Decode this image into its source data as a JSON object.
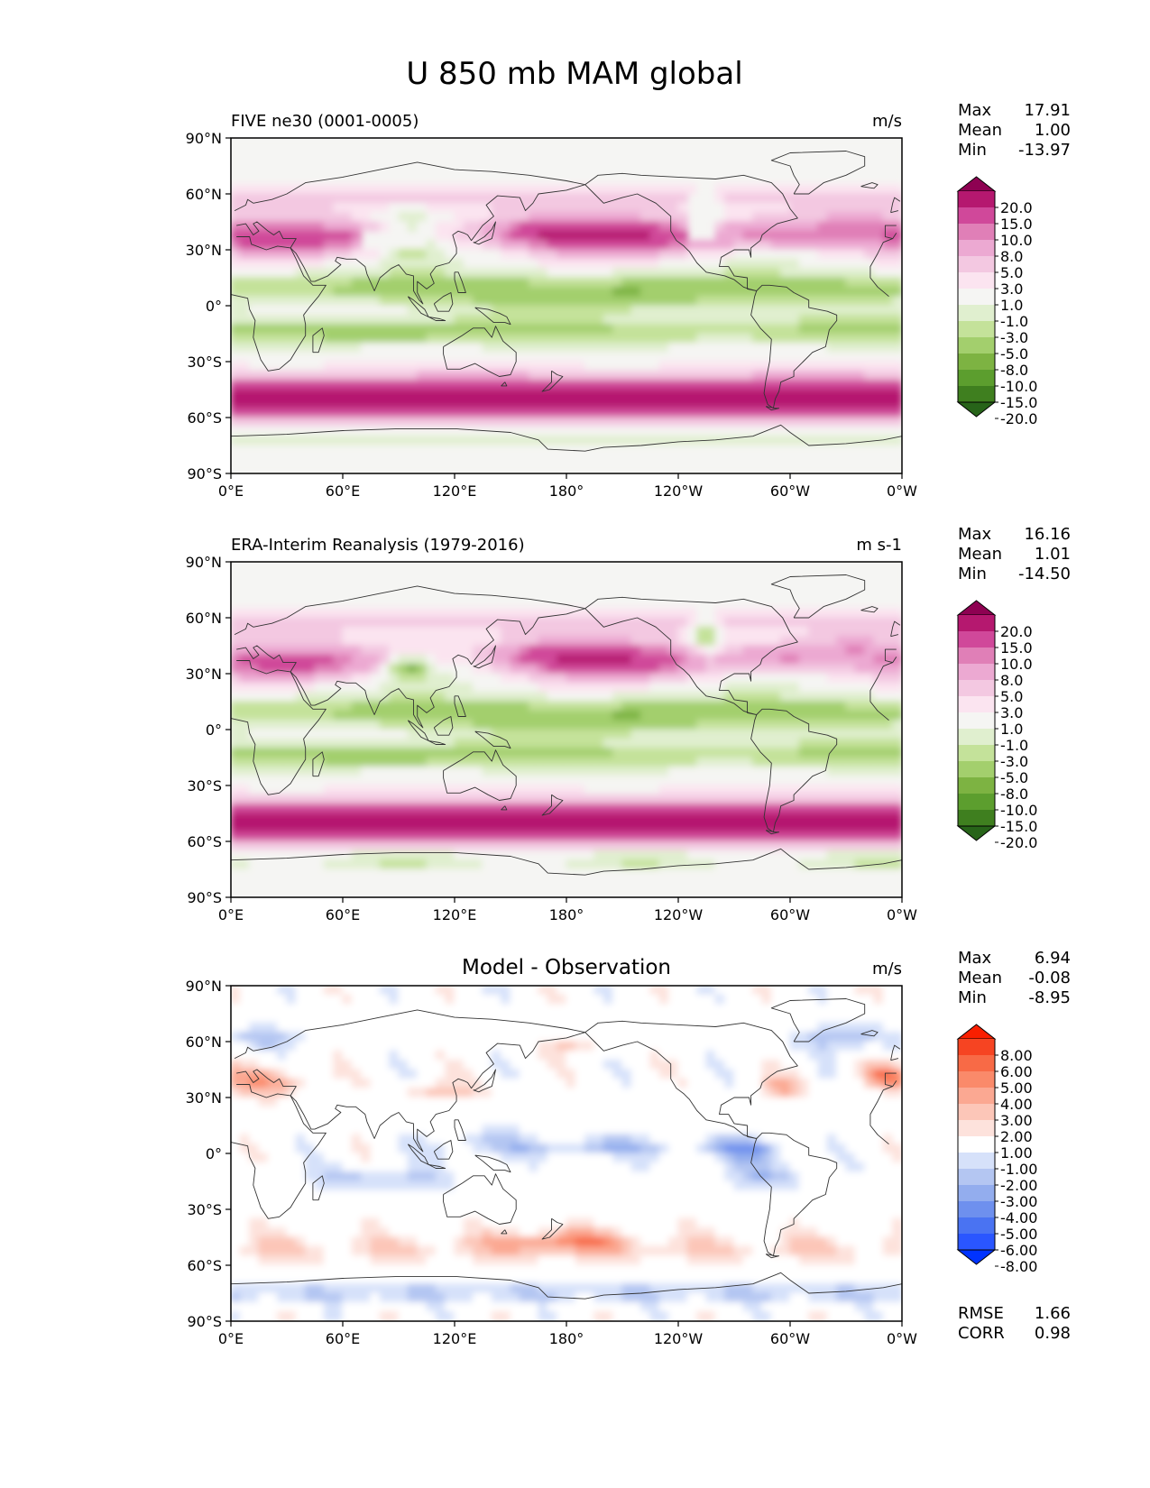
{
  "figure": {
    "title": "U 850 mb MAM global"
  },
  "axes": {
    "lat_ticks": [
      "90°N",
      "60°N",
      "30°N",
      "0°",
      "30°S",
      "60°S",
      "90°S"
    ],
    "lon_ticks": [
      "0°E",
      "60°E",
      "120°E",
      "180°",
      "120°W",
      "60°W",
      "0°W"
    ]
  },
  "colors": {
    "piyg": [
      "#276419",
      "#3f7f1f",
      "#5c9e2e",
      "#7db342",
      "#a3cf6d",
      "#c4e29a",
      "#e0efcf",
      "#f5f5f3",
      "#fbe4f0",
      "#f3c8e1",
      "#eca9d2",
      "#e07fb7",
      "#d0489a",
      "#b5186f",
      "#8e0152"
    ],
    "diff": [
      "#0033ff",
      "#2a56ff",
      "#4a73f2",
      "#6e90ee",
      "#93adee",
      "#b4c6f2",
      "#d6e1fa",
      "#ffffff",
      "#fde2dc",
      "#fcc6b8",
      "#fba892",
      "#fa8a6a",
      "#f86a46",
      "#f64422",
      "#f91f00"
    ],
    "land": "#333333"
  },
  "chart_data": [
    {
      "type": "heatmap",
      "name": "model",
      "subtitle": "FIVE ne30 (0001-0005)",
      "units": "m/s",
      "stats": [
        {
          "label": "Max",
          "value": "17.91"
        },
        {
          "label": "Mean",
          "value": "1.00"
        },
        {
          "label": "Min",
          "value": "-13.97"
        }
      ],
      "colorbar_levels": [
        "20.0",
        "15.0",
        "10.0",
        "8.0",
        "5.0",
        "3.0",
        "1.0",
        "-1.0",
        "-3.0",
        "-5.0",
        "-8.0",
        "-10.0",
        "-15.0",
        "-20.0"
      ],
      "xlim": [
        0,
        360
      ],
      "ylim": [
        -90,
        90
      ]
    },
    {
      "type": "heatmap",
      "name": "obs",
      "subtitle": "ERA-Interim Reanalysis (1979-2016)",
      "units": "m s-1",
      "stats": [
        {
          "label": "Max",
          "value": "16.16"
        },
        {
          "label": "Mean",
          "value": "1.01"
        },
        {
          "label": "Min",
          "value": "-14.50"
        }
      ],
      "colorbar_levels": [
        "20.0",
        "15.0",
        "10.0",
        "8.0",
        "5.0",
        "3.0",
        "1.0",
        "-1.0",
        "-3.0",
        "-5.0",
        "-8.0",
        "-10.0",
        "-15.0",
        "-20.0"
      ],
      "xlim": [
        0,
        360
      ],
      "ylim": [
        -90,
        90
      ]
    },
    {
      "type": "heatmap",
      "name": "diff",
      "subtitle": "",
      "center_title": "Model - Observation",
      "units": "m/s",
      "stats": [
        {
          "label": "Max",
          "value": "6.94"
        },
        {
          "label": "Mean",
          "value": "-0.08"
        },
        {
          "label": "Min",
          "value": "-8.95"
        }
      ],
      "colorbar_levels": [
        "8.00",
        "6.00",
        "5.00",
        "4.00",
        "3.00",
        "2.00",
        "1.00",
        "-1.00",
        "-2.00",
        "-3.00",
        "-4.00",
        "-5.00",
        "-6.00",
        "-8.00"
      ],
      "metrics": [
        {
          "label": "RMSE",
          "value": "1.66"
        },
        {
          "label": "CORR",
          "value": "0.98"
        }
      ],
      "xlim": [
        0,
        360
      ],
      "ylim": [
        -90,
        90
      ]
    }
  ]
}
